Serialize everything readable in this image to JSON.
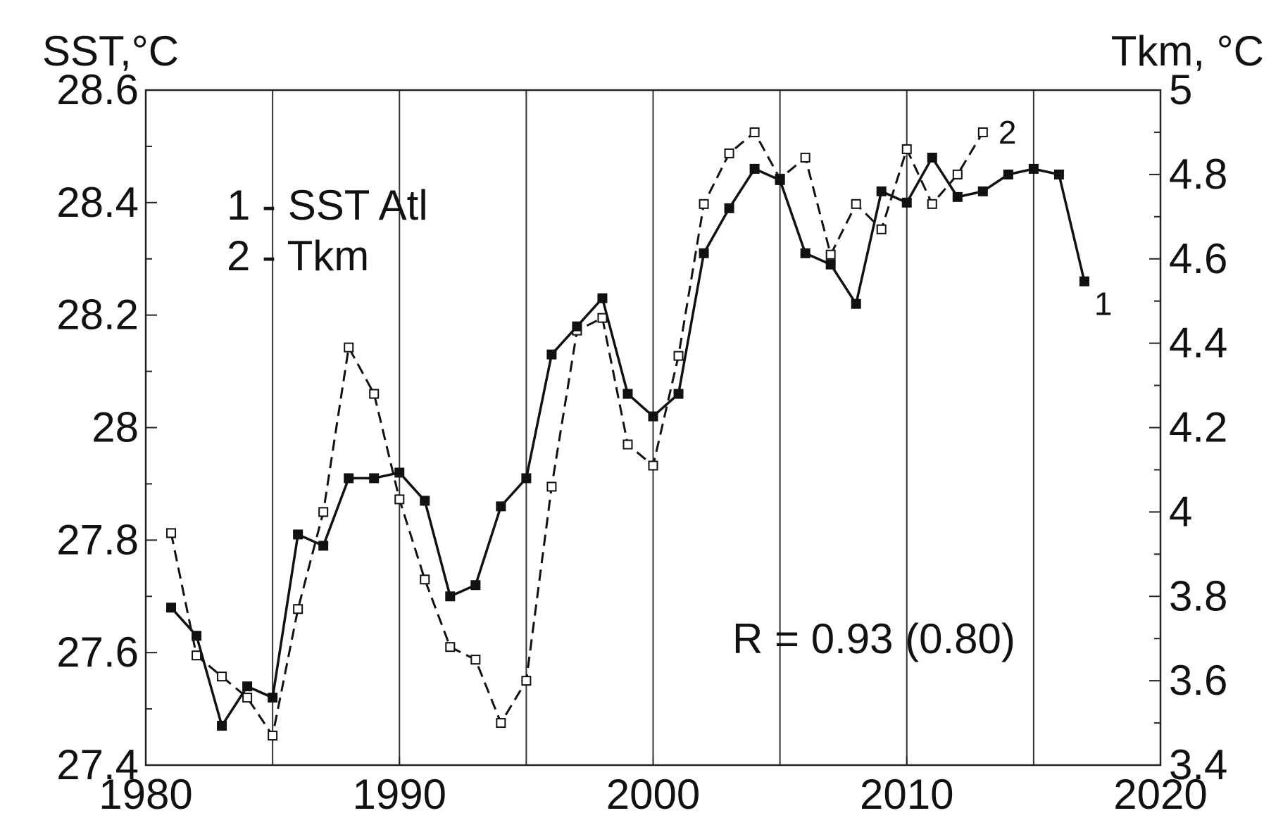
{
  "chart_data": {
    "type": "line",
    "y_axis_left_label": "SST,°C",
    "y_axis_right_label": "Tkm, °C",
    "x_ticks": [
      "1980",
      "1990",
      "2000",
      "2010",
      "2020"
    ],
    "y_left_ticks": [
      "27.4",
      "27.6",
      "27.8",
      "28",
      "28.2",
      "28.4",
      "28.6"
    ],
    "y_right_ticks": [
      "3.4",
      "3.6",
      "3.8",
      "4",
      "4.2",
      "4.4",
      "4.6",
      "4.8",
      "5"
    ],
    "xlim": [
      1980,
      2020
    ],
    "ylim_left": [
      27.4,
      28.6
    ],
    "ylim_right": [
      3.4,
      5.0
    ],
    "grid": "vertical lines every 5 years",
    "legend": [
      "1 - SST Atl",
      "2 - Tkm"
    ],
    "annotation": "R = 0.93 (0.80)",
    "series": [
      {
        "name": "SST Atl",
        "label": "1",
        "axis": "left",
        "style": "solid line, filled square markers",
        "x": [
          1981,
          1982,
          1983,
          1984,
          1985,
          1986,
          1987,
          1988,
          1989,
          1990,
          1991,
          1992,
          1993,
          1994,
          1995,
          1996,
          1997,
          1998,
          1999,
          2000,
          2001,
          2002,
          2003,
          2004,
          2005,
          2006,
          2007,
          2008,
          2009,
          2010,
          2011,
          2012,
          2013,
          2014,
          2015,
          2016,
          2017
        ],
        "y": [
          27.68,
          27.63,
          27.47,
          27.54,
          27.52,
          27.81,
          27.79,
          27.91,
          27.91,
          27.92,
          27.87,
          27.7,
          27.72,
          27.86,
          27.91,
          28.13,
          28.18,
          28.23,
          28.06,
          28.02,
          28.06,
          28.31,
          28.39,
          28.46,
          28.44,
          28.31,
          28.29,
          28.22,
          28.42,
          28.4,
          28.48,
          28.41,
          28.42,
          28.45,
          28.46,
          28.45,
          28.26
        ]
      },
      {
        "name": "Tkm",
        "label": "2",
        "axis": "right",
        "style": "dashed line, open square markers",
        "x": [
          1981,
          1982,
          1983,
          1984,
          1985,
          1986,
          1987,
          1988,
          1989,
          1990,
          1991,
          1992,
          1993,
          1994,
          1995,
          1996,
          1997,
          1998,
          1999,
          2000,
          2001,
          2002,
          2003,
          2004,
          2005,
          2006,
          2007,
          2008,
          2009,
          2010,
          2011,
          2012,
          2013
        ],
        "y": [
          3.95,
          3.66,
          3.61,
          3.56,
          3.47,
          3.77,
          4.0,
          4.39,
          4.28,
          4.03,
          3.84,
          3.68,
          3.65,
          3.5,
          3.6,
          4.06,
          4.43,
          4.46,
          4.16,
          4.11,
          4.37,
          4.73,
          4.85,
          4.9,
          4.79,
          4.84,
          4.61,
          4.73,
          4.67,
          4.86,
          4.73,
          4.8,
          4.9
        ]
      }
    ]
  }
}
